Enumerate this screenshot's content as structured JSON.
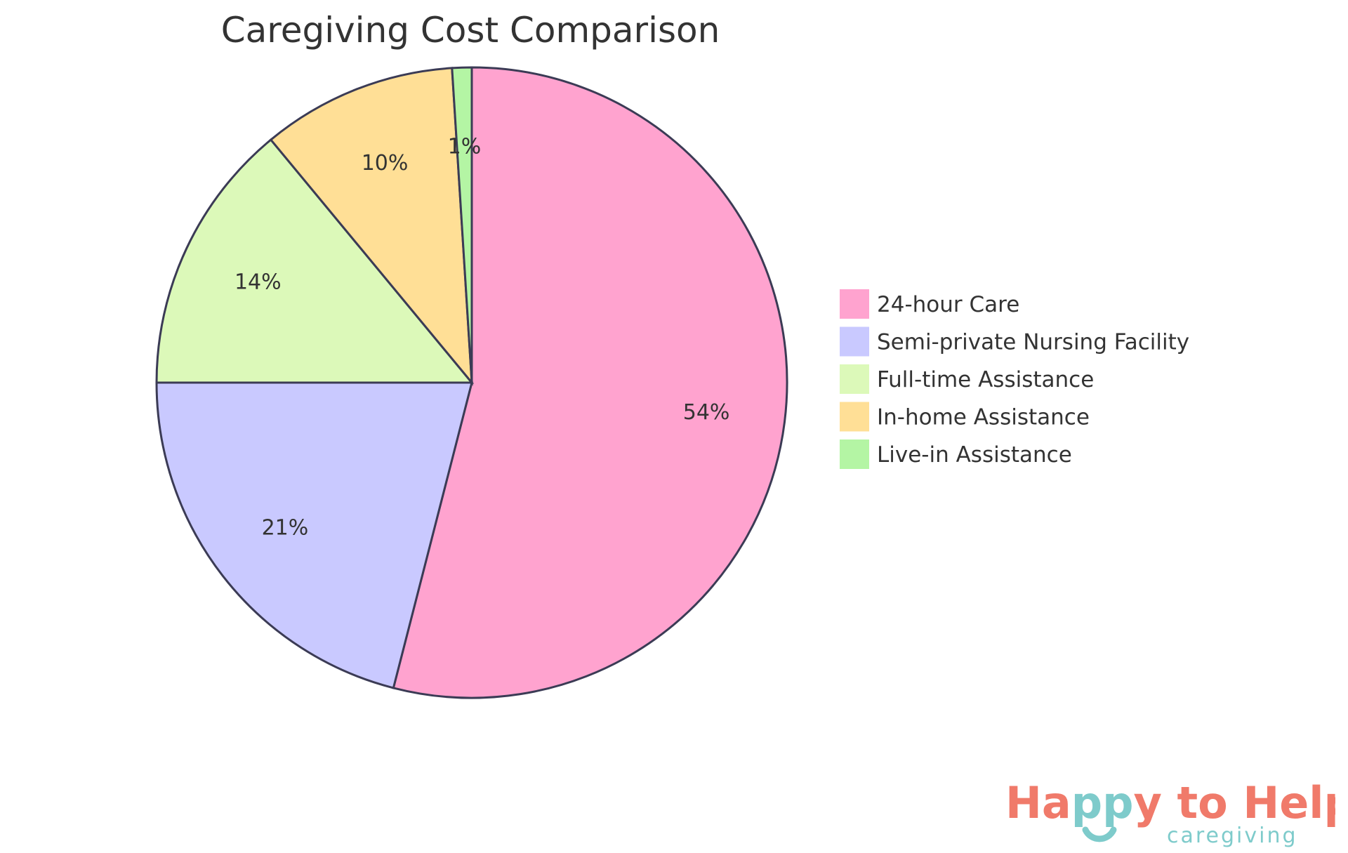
{
  "chart_data": {
    "type": "pie",
    "title": "Caregiving Cost Comparison",
    "categories": [
      "24-hour Care",
      "Semi-private Nursing Facility",
      "Full-time Assistance",
      "In-home Assistance",
      "Live-in Assistance"
    ],
    "values": [
      54,
      21,
      14,
      10,
      1
    ],
    "labels": [
      "54%",
      "21%",
      "14%",
      "10%",
      "1%"
    ],
    "colors": [
      "#ffa3cf",
      "#c9c9ff",
      "#dcf9b9",
      "#ffdf96",
      "#b4f5a4"
    ],
    "stroke_color": "#3b3b55",
    "legend_placement": "right"
  },
  "logo": {
    "text": "Happy to Help",
    "subtext": "caregiving",
    "colors": {
      "primary": "#f07a6a",
      "secondary": "#7ecbcb"
    }
  }
}
